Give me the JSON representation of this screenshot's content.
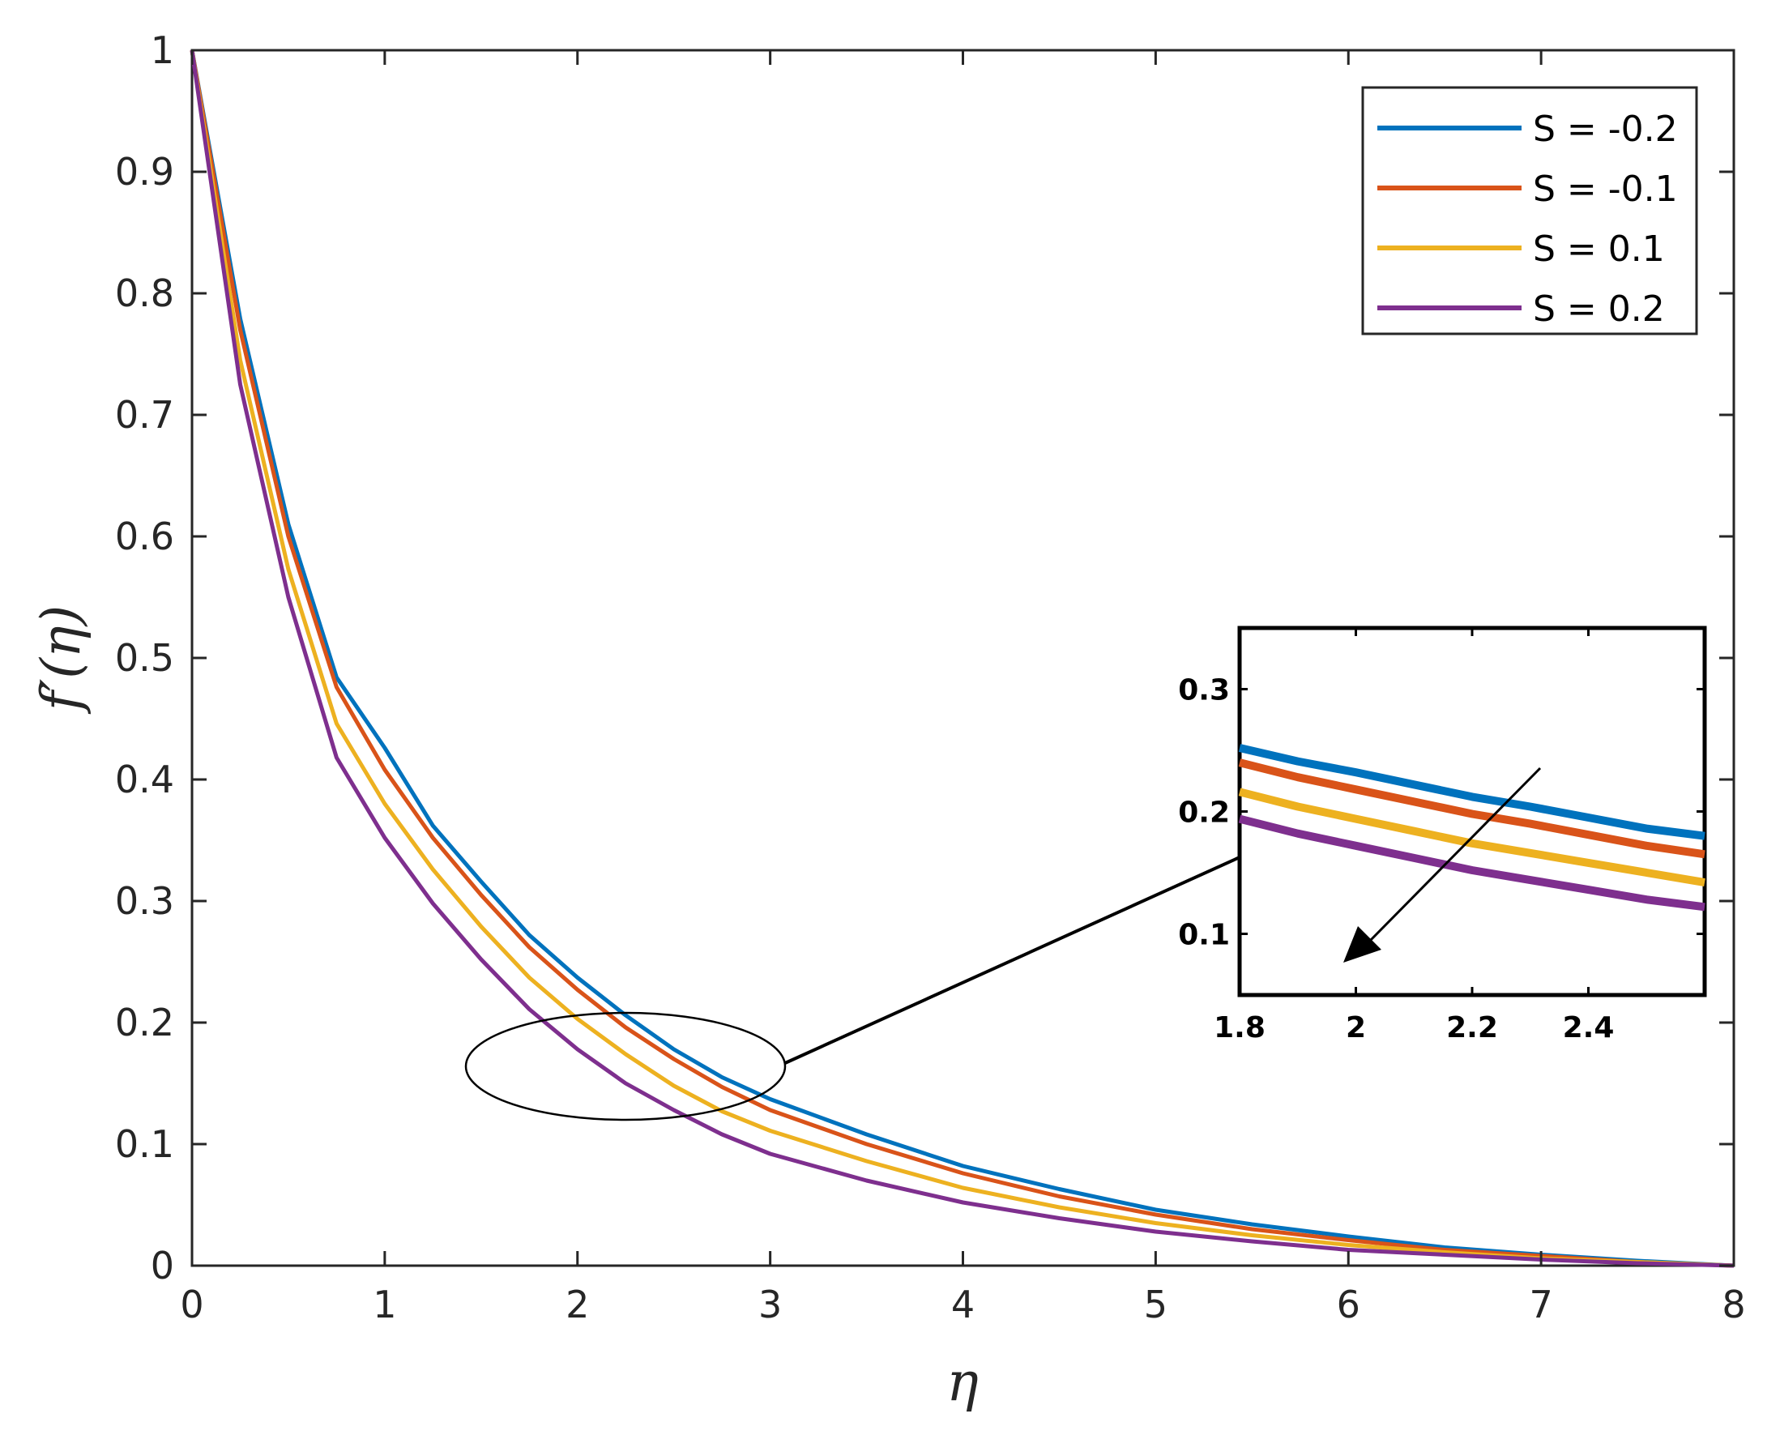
{
  "chart_data": {
    "type": "line",
    "title": "",
    "xlabel": "η",
    "ylabel": "f′(η)",
    "xlim": [
      0,
      8
    ],
    "ylim": [
      0,
      1
    ],
    "xticks": [
      "0",
      "1",
      "2",
      "3",
      "4",
      "5",
      "6",
      "7",
      "8"
    ],
    "yticks": [
      "0",
      "0.1",
      "0.2",
      "0.3",
      "0.4",
      "0.5",
      "0.6",
      "0.7",
      "0.8",
      "0.9",
      "1"
    ],
    "grid": false,
    "legend_position": "top-right",
    "x": [
      0,
      0.25,
      0.5,
      0.75,
      1,
      1.25,
      1.5,
      1.75,
      2,
      2.25,
      2.5,
      2.75,
      3,
      3.5,
      4,
      4.5,
      5,
      5.5,
      6,
      6.5,
      7,
      7.5,
      8
    ],
    "series": [
      {
        "name": "S = -0.2",
        "color": "#0072BD",
        "values": [
          1,
          0.779,
          0.61,
          0.484,
          0.426,
          0.362,
          0.316,
          0.272,
          0.237,
          0.206,
          0.178,
          0.155,
          0.137,
          0.108,
          0.082,
          0.063,
          0.046,
          0.034,
          0.024,
          0.015,
          0.009,
          0.004,
          0
        ]
      },
      {
        "name": "S = -0.1",
        "color": "#D95319",
        "values": [
          1,
          0.77,
          0.6,
          0.476,
          0.408,
          0.352,
          0.305,
          0.262,
          0.227,
          0.196,
          0.17,
          0.147,
          0.128,
          0.1,
          0.076,
          0.057,
          0.042,
          0.03,
          0.021,
          0.013,
          0.008,
          0.003,
          0
        ]
      },
      {
        "name": "S = 0.1",
        "color": "#EDB120",
        "values": [
          1,
          0.745,
          0.573,
          0.446,
          0.38,
          0.326,
          0.279,
          0.237,
          0.203,
          0.174,
          0.148,
          0.127,
          0.111,
          0.086,
          0.064,
          0.048,
          0.035,
          0.025,
          0.017,
          0.011,
          0.006,
          0.003,
          0
        ]
      },
      {
        "name": "S = 0.2",
        "color": "#7E2F8E",
        "values": [
          1,
          0.725,
          0.55,
          0.418,
          0.352,
          0.298,
          0.252,
          0.211,
          0.178,
          0.15,
          0.128,
          0.108,
          0.092,
          0.07,
          0.052,
          0.039,
          0.028,
          0.02,
          0.013,
          0.009,
          0.005,
          0.002,
          0
        ]
      }
    ],
    "inset": {
      "xlim": [
        1.8,
        2.6
      ],
      "ylim": [
        0.05,
        0.35
      ],
      "xticks": [
        "1.8",
        "2",
        "2.2",
        "2.4"
      ],
      "yticks": [
        "0.1",
        "0.2",
        "0.3"
      ],
      "x": [
        1.8,
        1.9,
        2.0,
        2.1,
        2.2,
        2.3,
        2.4,
        2.5,
        2.6
      ],
      "series": [
        {
          "name": "S = -0.2",
          "values": [
            0.252,
            0.241,
            0.232,
            0.222,
            0.212,
            0.204,
            0.195,
            0.186,
            0.18
          ]
        },
        {
          "name": "S = -0.1",
          "values": [
            0.24,
            0.228,
            0.218,
            0.208,
            0.198,
            0.19,
            0.181,
            0.172,
            0.165
          ]
        },
        {
          "name": "S = 0.1",
          "values": [
            0.216,
            0.204,
            0.194,
            0.184,
            0.174,
            0.166,
            0.158,
            0.15,
            0.142
          ]
        },
        {
          "name": "S = 0.2",
          "values": [
            0.194,
            0.182,
            0.172,
            0.162,
            0.152,
            0.144,
            0.136,
            0.128,
            0.122
          ]
        }
      ]
    }
  }
}
